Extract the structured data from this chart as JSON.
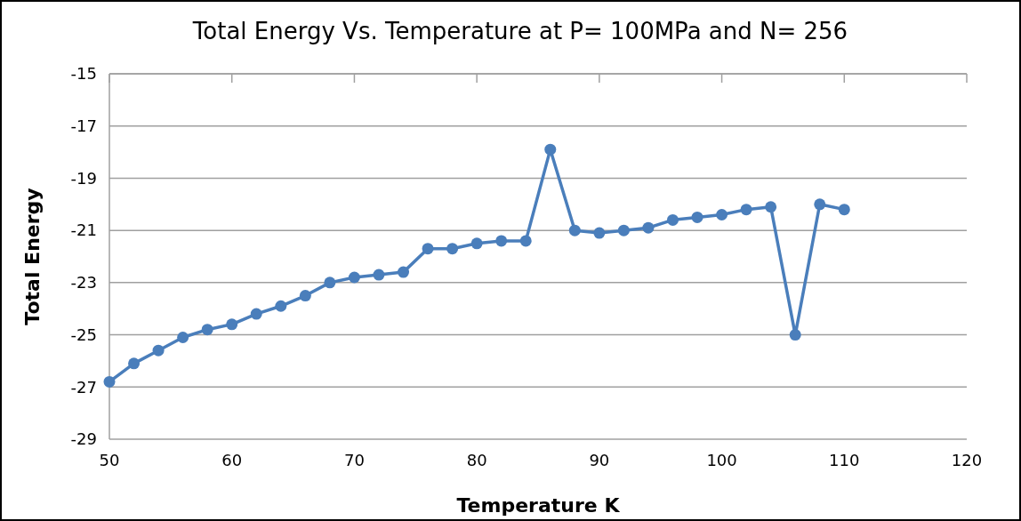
{
  "chart_data": {
    "type": "line",
    "title": "Total Energy Vs. Temperature at P= 100MPa and N= 256",
    "xlabel": "Temperature K",
    "ylabel": "Total Energy",
    "x": [
      50,
      52,
      54,
      56,
      58,
      60,
      62,
      64,
      66,
      68,
      70,
      72,
      74,
      76,
      78,
      80,
      82,
      84,
      86,
      88,
      90,
      92,
      94,
      96,
      98,
      100,
      102,
      104,
      106,
      108,
      110
    ],
    "series": [
      {
        "color": "#4a7ebb",
        "values": [
          -26.8,
          -26.1,
          -25.6,
          -25.1,
          -24.8,
          -24.6,
          -24.2,
          -23.9,
          -23.5,
          -23.0,
          -22.8,
          -22.7,
          -22.6,
          -21.7,
          -21.7,
          -21.5,
          -21.4,
          -21.4,
          -17.9,
          -21.0,
          -21.1,
          -21.0,
          -20.9,
          -20.6,
          -20.5,
          -20.4,
          -20.2,
          -20.1,
          -25.0,
          -20.0,
          -20.2
        ]
      }
    ],
    "xlim": [
      50,
      120
    ],
    "xticks": [
      50,
      60,
      70,
      80,
      90,
      100,
      110,
      120
    ],
    "ylim": [
      -29,
      -15
    ],
    "yticks": [
      -15,
      -17,
      -19,
      -21,
      -23,
      -25,
      -27,
      -29
    ],
    "grid": "y",
    "marker": "circle",
    "line_style": "solid"
  }
}
